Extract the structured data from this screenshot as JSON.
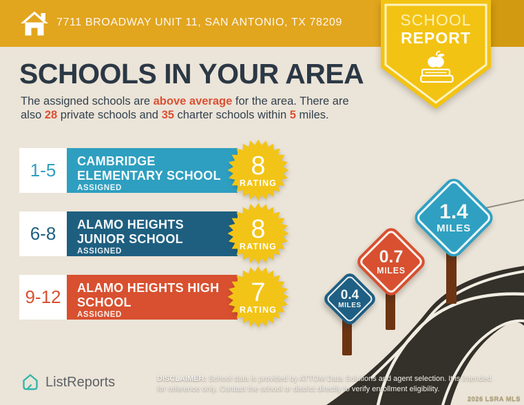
{
  "header": {
    "address": "7711 BROADWAY UNIT 11, SAN ANTONIO, TX 78209",
    "badge": {
      "line1": "SCHOOL",
      "line2": "REPORT"
    }
  },
  "title": "SCHOOLS IN YOUR AREA",
  "intro": {
    "line1": [
      {
        "t": "The assigned schools are "
      },
      {
        "t": "above average"
      },
      {
        "t": " for the area. There are"
      }
    ],
    "line2": [
      {
        "t": "also "
      },
      {
        "t": "28"
      },
      {
        "t": " private schools and "
      },
      {
        "t": "35"
      },
      {
        "t": " charter schools within "
      },
      {
        "t": "5"
      },
      {
        "t": " miles."
      }
    ]
  },
  "schools": [
    {
      "grades": "1-5",
      "name_lines": [
        "CAMBRIDGE",
        "ELEMENTARY SCHOOL"
      ],
      "tag": "ASSIGNED",
      "rating": "8",
      "rating_label": "RATING",
      "color": "#2E9FC0"
    },
    {
      "grades": "6-8",
      "name_lines": [
        "ALAMO HEIGHTS",
        "JUNIOR SCHOOL"
      ],
      "tag": "ASSIGNED",
      "rating": "8",
      "rating_label": "RATING",
      "color": "#1E5F80"
    },
    {
      "grades": "9-12",
      "name_lines": [
        "ALAMO HEIGHTS HIGH",
        "SCHOOL"
      ],
      "tag": "ASSIGNED",
      "rating": "7",
      "rating_label": "RATING",
      "color": "#D8502F"
    }
  ],
  "signs": [
    {
      "distance": "0.4",
      "unit": "MILES",
      "color": "#1F5F84"
    },
    {
      "distance": "0.7",
      "unit": "MILES",
      "color": "#D8502F"
    },
    {
      "distance": "1.4",
      "unit": "MILES",
      "color": "#2FA0C2"
    }
  ],
  "footer": {
    "brand": "ListReports",
    "disclaimer_label": "DISCLAIMER:",
    "disclaimer_line1": " School data is provided by ATTOM Data Solutions and agent selection. It is intended",
    "disclaimer_line2": "for reference only. Contact the school or district directly to verify enrollment eligibility.",
    "watermark": "2026 LSRA MLS"
  },
  "colors": {
    "header_gold": "#E2A51E",
    "header_gold_dark": "#D29A10",
    "pennant_gold": "#F3C313",
    "pennant_border": "#FCF3C2",
    "star_gold": "#F2C417",
    "navy": "#2B3845",
    "accent_red": "#DB5033",
    "teal": "#2E9FC0",
    "dark_blue": "#1E5F80",
    "red": "#D8502F",
    "beige": "#EBE4D8",
    "road": "#34302A",
    "post_brown": "#6D3413",
    "logo_teal": "#35B6AA"
  }
}
